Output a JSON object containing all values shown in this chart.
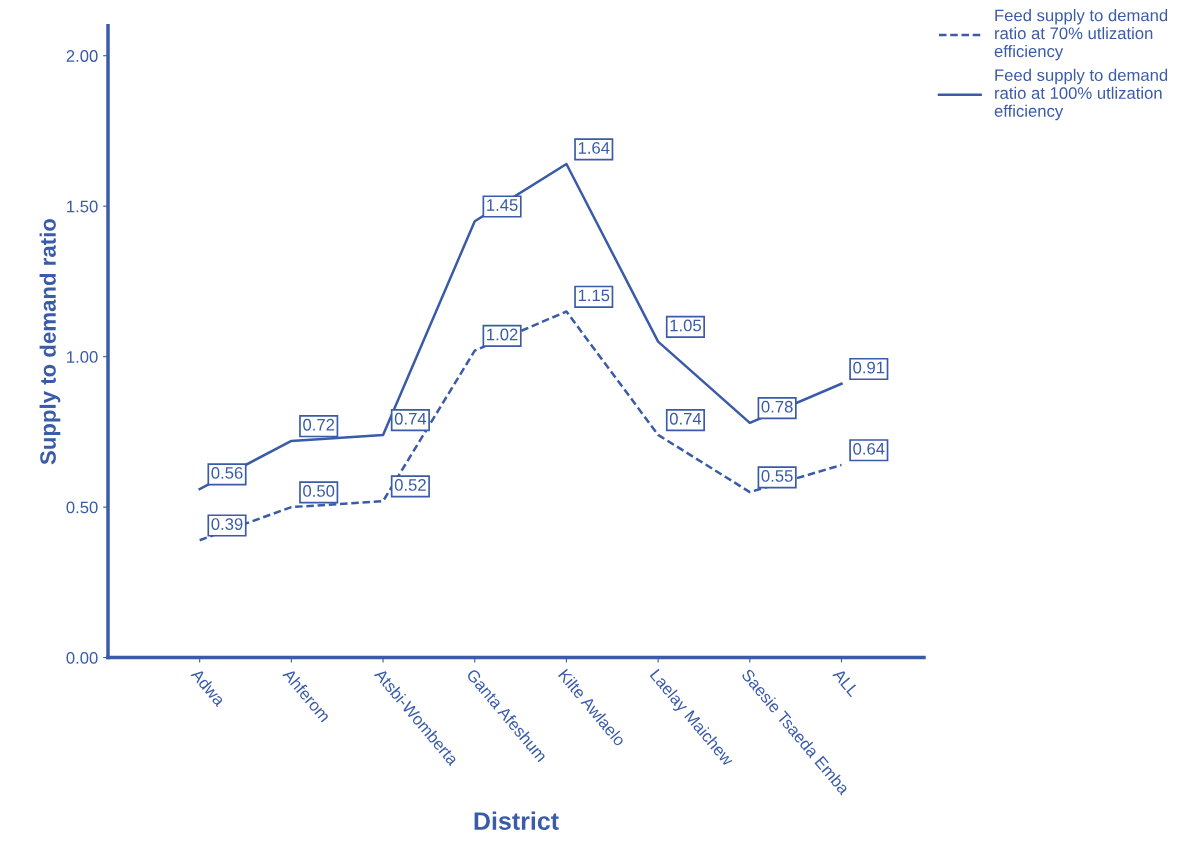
{
  "chart_data": {
    "type": "line",
    "xlabel": "District",
    "ylabel": "Supply to demand ratio",
    "categories": [
      "Adwa",
      "Ahferom",
      "Atsbi-Womberta",
      "Ganta Afeshum",
      "Kilte Awlaelo",
      "Laelay Maichew",
      "Saesie Tsaeda Emba",
      "ALL"
    ],
    "series": [
      {
        "name": "Feed supply to demand\nratio at 70% utlization\nefficiency",
        "color": "#3a5ba8",
        "line_style": "dashed",
        "marker": "none",
        "values": [
          0.39,
          0.5,
          0.52,
          1.02,
          1.15,
          0.74,
          0.55,
          0.64
        ],
        "value_labels": [
          "0.39",
          "0.50",
          "0.52",
          "1.02",
          "1.15",
          "0.74",
          "0.55",
          "0.64"
        ]
      },
      {
        "name": "Feed supply to demand\nratio at 100% utlization\nefficiency",
        "color": "#3a5ba8",
        "line_style": "solid",
        "marker": "none",
        "values": [
          0.56,
          0.72,
          0.74,
          1.45,
          1.64,
          1.05,
          0.78,
          0.91
        ],
        "value_labels": [
          "0.56",
          "0.72",
          "0.74",
          "1.45",
          "1.64",
          "1.05",
          "0.78",
          "0.91"
        ]
      }
    ],
    "ylim": [
      0,
      2.1
    ],
    "yticks": [
      {
        "value": 0,
        "label": "0.00"
      },
      {
        "value": 0.5,
        "label": "0.50"
      },
      {
        "value": 1,
        "label": "1.00"
      },
      {
        "value": 1.5,
        "label": "1.50"
      },
      {
        "value": 2,
        "label": "2.00"
      }
    ],
    "legend": "top right",
    "grid": false
  }
}
